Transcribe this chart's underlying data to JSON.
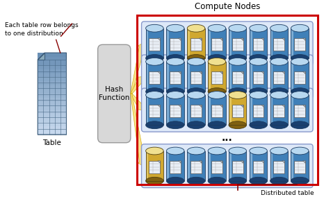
{
  "title": "Compute Nodes",
  "label_table": "Table",
  "label_distributed": "Distributed table",
  "label_hash": "Hash\nFunction",
  "label_annotation": "Each table row belongs\nto one distribution",
  "bg_color": "#ffffff",
  "red_border_color": "#cc0000",
  "hash_fill": "#d8d8d8",
  "hash_edge": "#999999",
  "table_fill_top": "#c8d8e8",
  "table_fill_bot": "#7090b0",
  "table_grid": "#7090a8",
  "cyl_blue_top": "#b8d8f0",
  "cyl_blue_mid": "#5090c8",
  "cyl_blue_bot": "#1a4a80",
  "cyl_edge": "#1a3a60",
  "row_fill": "#dde8f8",
  "row_edge": "#8899cc",
  "arrow_fill": "#f8e080",
  "arrow_edge": "#d0a800",
  "annot_arrow_color": "#880000",
  "dots_text": "...",
  "n_cylinders": 8,
  "n_rows": 4,
  "row_highlight_cols": [
    2,
    3,
    4,
    0
  ],
  "title_fontsize": 8.5,
  "label_fontsize": 7.5,
  "small_fontsize": 6.5,
  "annot_fontsize": 6.5
}
